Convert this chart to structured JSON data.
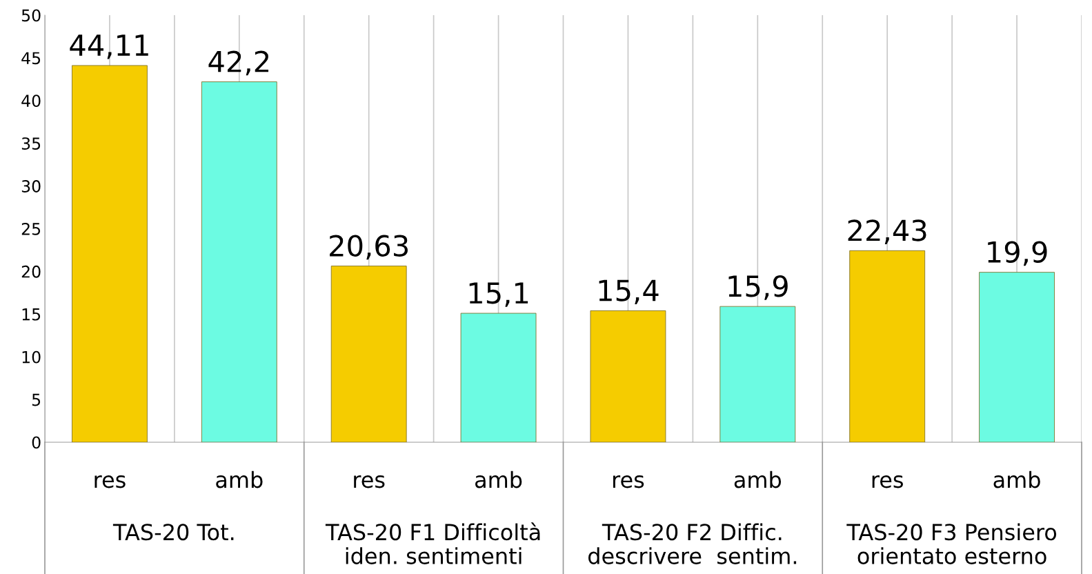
{
  "chart_data": {
    "type": "bar",
    "categories": [
      "res",
      "amb",
      "res",
      "amb",
      "res",
      "amb",
      "res",
      "amb"
    ],
    "values": [
      44.11,
      42.2,
      20.63,
      15.1,
      15.4,
      15.9,
      22.43,
      19.9
    ],
    "colors": [
      "#f5cc00",
      "#6cfbe2",
      "#f5cc00",
      "#6cfbe2",
      "#f5cc00",
      "#6cfbe2",
      "#f5cc00",
      "#6cfbe2"
    ],
    "value_labels": [
      "44,11",
      "42,2",
      "20,63",
      "15,1",
      "15,4",
      "15,9",
      "22,43",
      "19,9"
    ],
    "annotations": [
      "TAS-20 Tot.",
      "TAS-20 F1 Difficoltà\niden. sentimenti",
      "TAS-20 F2 Diffic.\ndescrivere  sentim.",
      "TAS-20 F3 Pensiero\norientato esterno"
    ],
    "ylim": [
      0,
      50
    ],
    "yticks": [
      0,
      5,
      10,
      15,
      20,
      25,
      30,
      35,
      40,
      45,
      50
    ],
    "grid": "x",
    "legend": false
  }
}
